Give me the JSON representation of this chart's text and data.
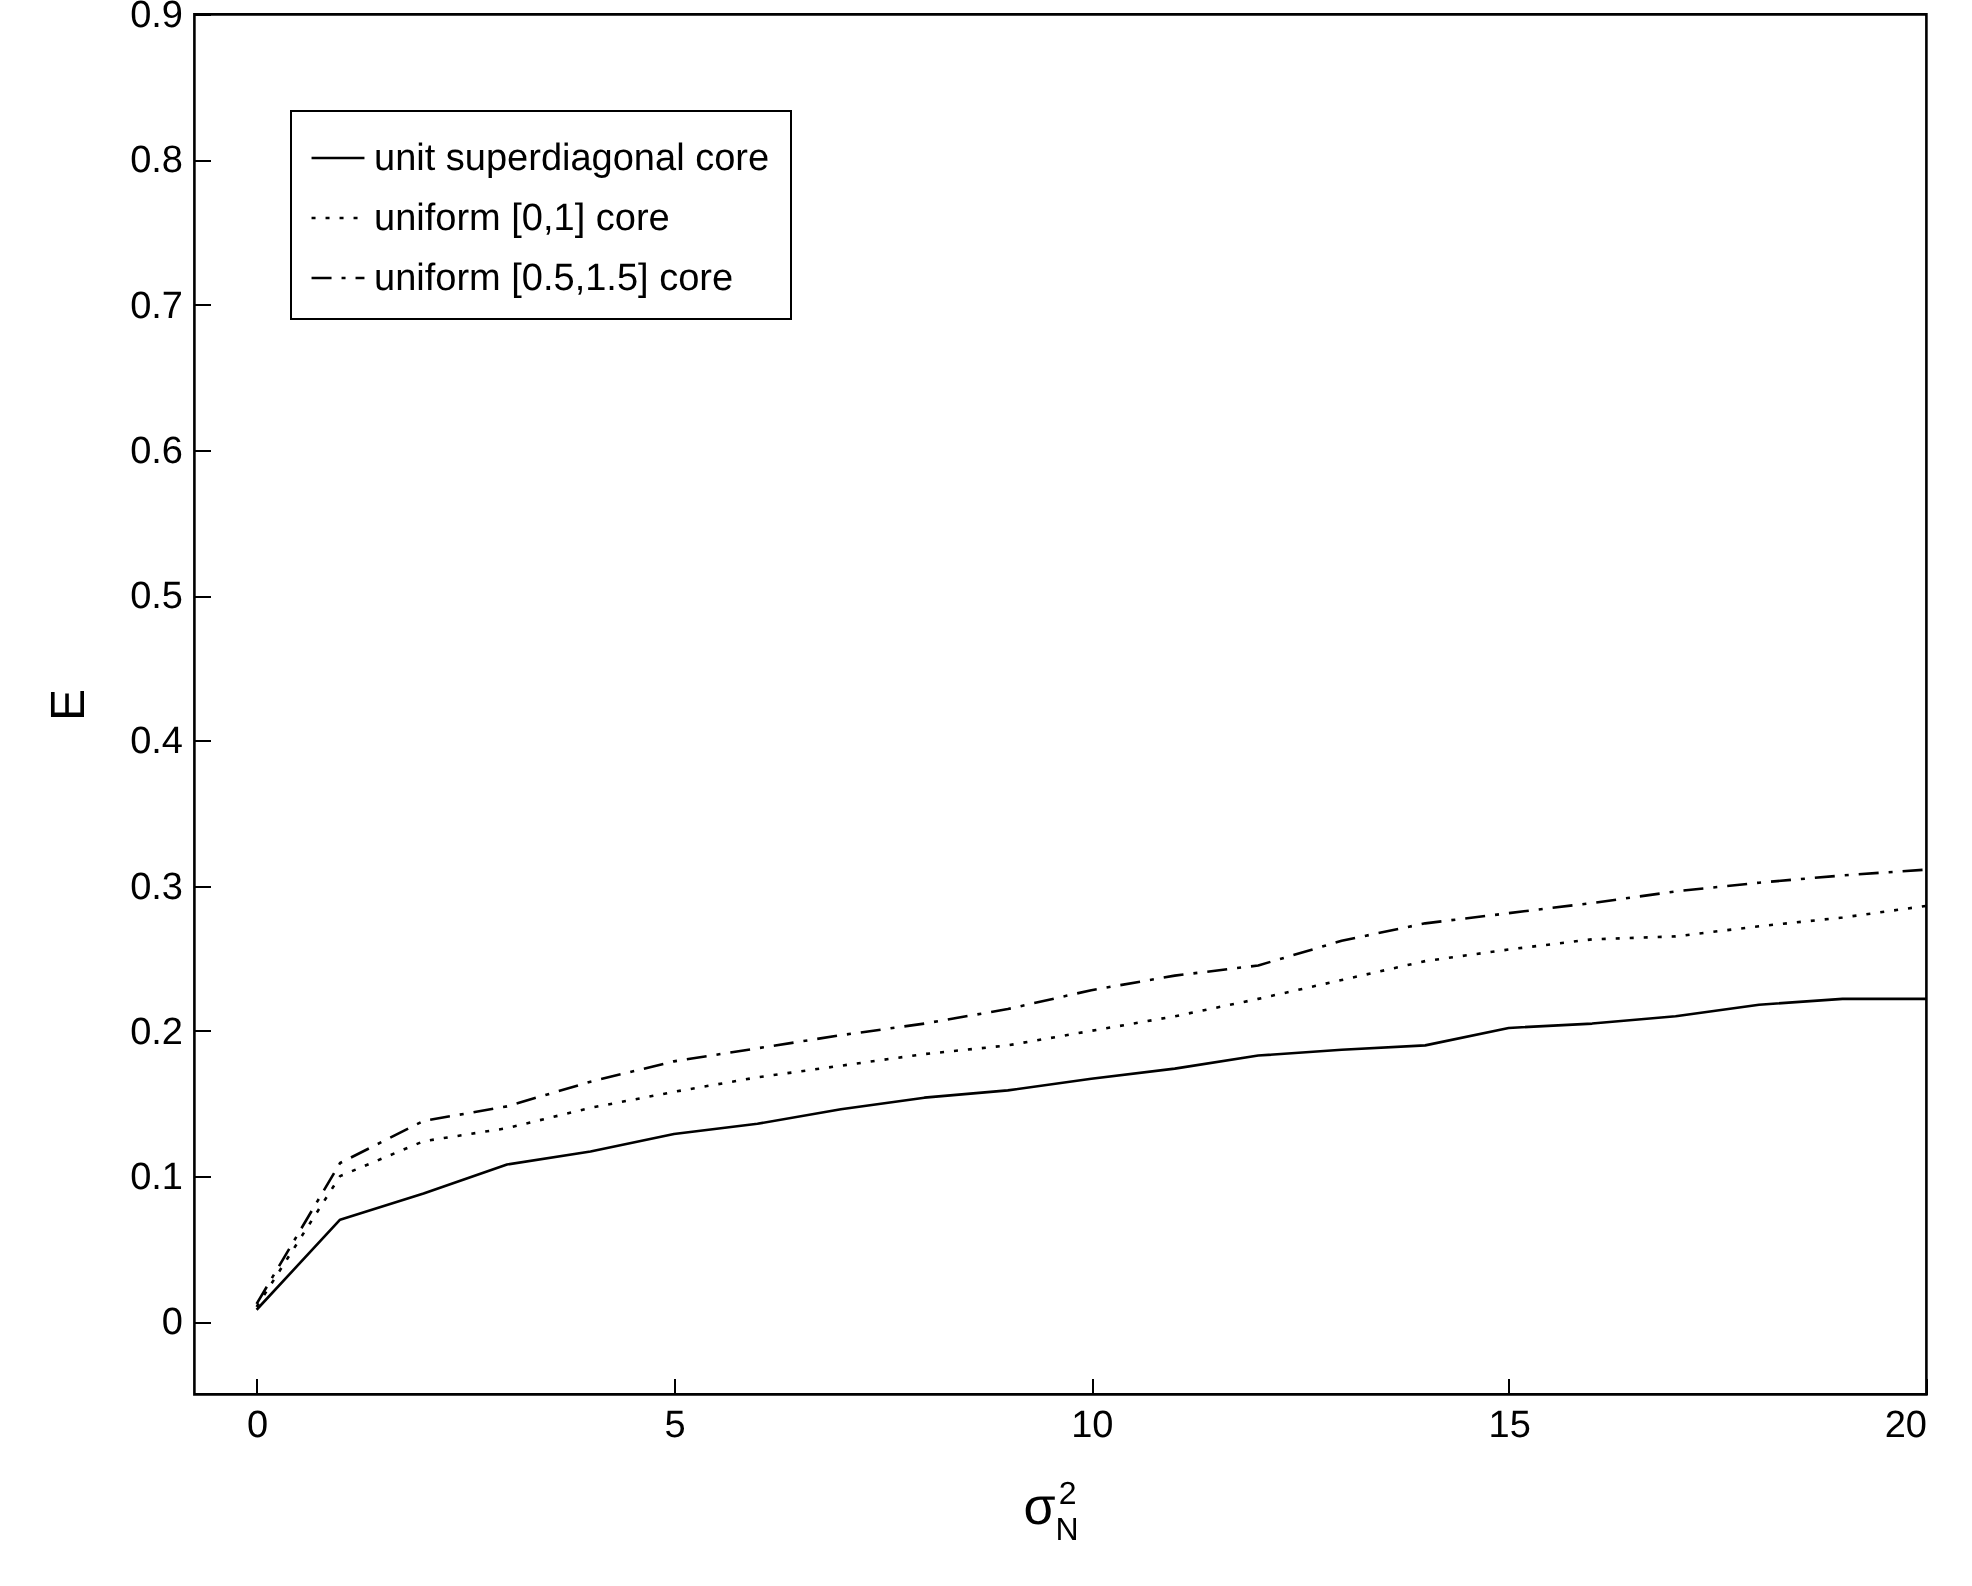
{
  "chart_data": {
    "type": "line",
    "xlabel": "σ$_{N}$$^{2}$",
    "ylabel": "E",
    "x": [
      0,
      1,
      2,
      3,
      4,
      5,
      6,
      7,
      8,
      9,
      10,
      11,
      12,
      13,
      14,
      15,
      16,
      17,
      18,
      19,
      20
    ],
    "series": [
      {
        "name": "unit superdiagonal core",
        "color": "#000000",
        "line_style": "solid",
        "values": [
          0.008,
          0.07,
          0.088,
          0.108,
          0.117,
          0.129,
          0.136,
          0.146,
          0.154,
          0.159,
          0.167,
          0.174,
          0.183,
          0.187,
          0.19,
          0.202,
          0.205,
          0.21,
          0.218,
          0.222,
          0.222
        ]
      },
      {
        "name": "uniform [0,1] core",
        "color": "#000000",
        "line_style": "dotted",
        "values": [
          0.01,
          0.1,
          0.124,
          0.133,
          0.147,
          0.158,
          0.168,
          0.176,
          0.184,
          0.19,
          0.2,
          0.21,
          0.222,
          0.235,
          0.248,
          0.256,
          0.263,
          0.265,
          0.272,
          0.278,
          0.286
        ]
      },
      {
        "name": "uniform [0.5,1.5] core",
        "color": "#000000",
        "line_style": "dashdot",
        "values": [
          0.012,
          0.109,
          0.138,
          0.148,
          0.165,
          0.179,
          0.188,
          0.197,
          0.205,
          0.215,
          0.228,
          0.238,
          0.245,
          0.262,
          0.274,
          0.281,
          0.288,
          0.296,
          0.302,
          0.307,
          0.311
        ]
      }
    ],
    "xlim": [
      -0.75,
      20
    ],
    "ylim": [
      -0.05,
      0.9
    ],
    "xticks": [
      0,
      5,
      10,
      15,
      20
    ],
    "yticks": [
      0,
      0.1,
      0.2,
      0.3,
      0.4,
      0.5,
      0.6,
      0.7,
      0.8,
      0.9
    ],
    "legend": "top left"
  }
}
